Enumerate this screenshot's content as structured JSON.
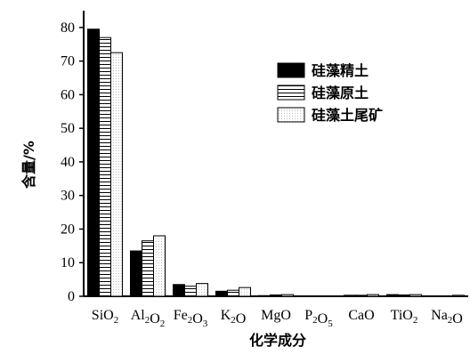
{
  "chart_data": {
    "type": "bar",
    "xlabel": "化学成分",
    "ylabel": "含量/%",
    "ylim": [
      0,
      85
    ],
    "yticks": [
      0,
      10,
      20,
      30,
      40,
      50,
      60,
      70,
      80
    ],
    "grid": false,
    "legend_position": "top-right",
    "categories": [
      {
        "base": "SiO",
        "sub": "2",
        "parts": [
          [
            "Si",
            ""
          ],
          [
            "O",
            "2"
          ]
        ]
      },
      {
        "base": "Al2O2",
        "parts": [
          [
            "Al",
            "2"
          ],
          [
            "O",
            "2"
          ]
        ]
      },
      {
        "base": "Fe2O3",
        "parts": [
          [
            "Fe",
            "2"
          ],
          [
            "O",
            "3"
          ]
        ]
      },
      {
        "base": "K2O",
        "parts": [
          [
            "K",
            "2"
          ],
          [
            "O",
            ""
          ]
        ]
      },
      {
        "base": "MgO",
        "parts": [
          [
            "MgO",
            ""
          ]
        ]
      },
      {
        "base": "P2O5",
        "parts": [
          [
            "P",
            "2"
          ],
          [
            "O",
            "5"
          ]
        ]
      },
      {
        "base": "CaO",
        "parts": [
          [
            "CaO",
            ""
          ]
        ]
      },
      {
        "base": "TiO2",
        "parts": [
          [
            "TiO",
            "2"
          ]
        ]
      },
      {
        "base": "Na2O",
        "parts": [
          [
            "Na",
            "2"
          ],
          [
            "O",
            ""
          ]
        ]
      }
    ],
    "series": [
      {
        "name": "硅藻精土",
        "pattern": "solid",
        "values": [
          79.5,
          13.5,
          3.5,
          1.5,
          0.2,
          0.1,
          0.3,
          0.5,
          0.1
        ]
      },
      {
        "name": "硅藻原土",
        "pattern": "horizontal-lines",
        "values": [
          77.0,
          16.5,
          3.0,
          1.8,
          0.4,
          0.1,
          0.3,
          0.4,
          0.1
        ]
      },
      {
        "name": "硅藻土尾矿",
        "pattern": "dots",
        "values": [
          72.5,
          18.0,
          3.8,
          2.6,
          0.5,
          0.1,
          0.5,
          0.5,
          0.3
        ]
      }
    ]
  }
}
